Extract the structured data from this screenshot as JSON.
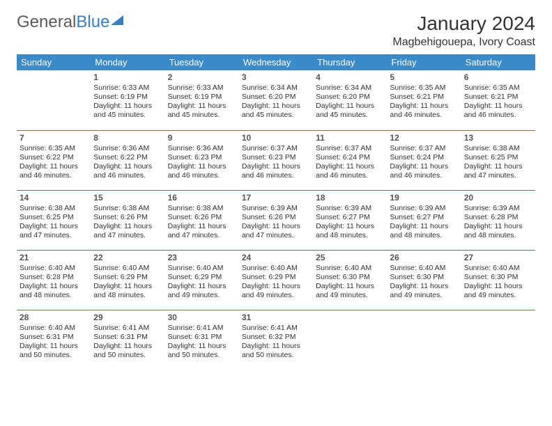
{
  "logo": {
    "part1": "General",
    "part2": "Blue"
  },
  "title": "January 2024",
  "location": "Magbehigouepa, Ivory Coast",
  "calendar": {
    "type": "table",
    "header_bg": "#3a89c9",
    "header_fg": "#ffffff",
    "border_color": "#3a7fc0",
    "background_color": "#ffffff",
    "text_color": "#333333",
    "font_size_cell": 10.5,
    "font_size_header": 13,
    "font_size_title": 28,
    "columns": [
      "Sunday",
      "Monday",
      "Tuesday",
      "Wednesday",
      "Thursday",
      "Friday",
      "Saturday"
    ],
    "weeks": [
      [
        null,
        {
          "n": "1",
          "sr": "Sunrise: 6:33 AM",
          "ss": "Sunset: 6:19 PM",
          "d1": "Daylight: 11 hours",
          "d2": "and 45 minutes."
        },
        {
          "n": "2",
          "sr": "Sunrise: 6:33 AM",
          "ss": "Sunset: 6:19 PM",
          "d1": "Daylight: 11 hours",
          "d2": "and 45 minutes."
        },
        {
          "n": "3",
          "sr": "Sunrise: 6:34 AM",
          "ss": "Sunset: 6:20 PM",
          "d1": "Daylight: 11 hours",
          "d2": "and 45 minutes."
        },
        {
          "n": "4",
          "sr": "Sunrise: 6:34 AM",
          "ss": "Sunset: 6:20 PM",
          "d1": "Daylight: 11 hours",
          "d2": "and 45 minutes."
        },
        {
          "n": "5",
          "sr": "Sunrise: 6:35 AM",
          "ss": "Sunset: 6:21 PM",
          "d1": "Daylight: 11 hours",
          "d2": "and 46 minutes."
        },
        {
          "n": "6",
          "sr": "Sunrise: 6:35 AM",
          "ss": "Sunset: 6:21 PM",
          "d1": "Daylight: 11 hours",
          "d2": "and 46 minutes."
        }
      ],
      [
        {
          "n": "7",
          "sr": "Sunrise: 6:35 AM",
          "ss": "Sunset: 6:22 PM",
          "d1": "Daylight: 11 hours",
          "d2": "and 46 minutes."
        },
        {
          "n": "8",
          "sr": "Sunrise: 6:36 AM",
          "ss": "Sunset: 6:22 PM",
          "d1": "Daylight: 11 hours",
          "d2": "and 46 minutes."
        },
        {
          "n": "9",
          "sr": "Sunrise: 6:36 AM",
          "ss": "Sunset: 6:23 PM",
          "d1": "Daylight: 11 hours",
          "d2": "and 46 minutes."
        },
        {
          "n": "10",
          "sr": "Sunrise: 6:37 AM",
          "ss": "Sunset: 6:23 PM",
          "d1": "Daylight: 11 hours",
          "d2": "and 46 minutes."
        },
        {
          "n": "11",
          "sr": "Sunrise: 6:37 AM",
          "ss": "Sunset: 6:24 PM",
          "d1": "Daylight: 11 hours",
          "d2": "and 46 minutes."
        },
        {
          "n": "12",
          "sr": "Sunrise: 6:37 AM",
          "ss": "Sunset: 6:24 PM",
          "d1": "Daylight: 11 hours",
          "d2": "and 46 minutes."
        },
        {
          "n": "13",
          "sr": "Sunrise: 6:38 AM",
          "ss": "Sunset: 6:25 PM",
          "d1": "Daylight: 11 hours",
          "d2": "and 47 minutes."
        }
      ],
      [
        {
          "n": "14",
          "sr": "Sunrise: 6:38 AM",
          "ss": "Sunset: 6:25 PM",
          "d1": "Daylight: 11 hours",
          "d2": "and 47 minutes."
        },
        {
          "n": "15",
          "sr": "Sunrise: 6:38 AM",
          "ss": "Sunset: 6:26 PM",
          "d1": "Daylight: 11 hours",
          "d2": "and 47 minutes."
        },
        {
          "n": "16",
          "sr": "Sunrise: 6:38 AM",
          "ss": "Sunset: 6:26 PM",
          "d1": "Daylight: 11 hours",
          "d2": "and 47 minutes."
        },
        {
          "n": "17",
          "sr": "Sunrise: 6:39 AM",
          "ss": "Sunset: 6:26 PM",
          "d1": "Daylight: 11 hours",
          "d2": "and 47 minutes."
        },
        {
          "n": "18",
          "sr": "Sunrise: 6:39 AM",
          "ss": "Sunset: 6:27 PM",
          "d1": "Daylight: 11 hours",
          "d2": "and 48 minutes."
        },
        {
          "n": "19",
          "sr": "Sunrise: 6:39 AM",
          "ss": "Sunset: 6:27 PM",
          "d1": "Daylight: 11 hours",
          "d2": "and 48 minutes."
        },
        {
          "n": "20",
          "sr": "Sunrise: 6:39 AM",
          "ss": "Sunset: 6:28 PM",
          "d1": "Daylight: 11 hours",
          "d2": "and 48 minutes."
        }
      ],
      [
        {
          "n": "21",
          "sr": "Sunrise: 6:40 AM",
          "ss": "Sunset: 6:28 PM",
          "d1": "Daylight: 11 hours",
          "d2": "and 48 minutes."
        },
        {
          "n": "22",
          "sr": "Sunrise: 6:40 AM",
          "ss": "Sunset: 6:29 PM",
          "d1": "Daylight: 11 hours",
          "d2": "and 48 minutes."
        },
        {
          "n": "23",
          "sr": "Sunrise: 6:40 AM",
          "ss": "Sunset: 6:29 PM",
          "d1": "Daylight: 11 hours",
          "d2": "and 49 minutes."
        },
        {
          "n": "24",
          "sr": "Sunrise: 6:40 AM",
          "ss": "Sunset: 6:29 PM",
          "d1": "Daylight: 11 hours",
          "d2": "and 49 minutes."
        },
        {
          "n": "25",
          "sr": "Sunrise: 6:40 AM",
          "ss": "Sunset: 6:30 PM",
          "d1": "Daylight: 11 hours",
          "d2": "and 49 minutes."
        },
        {
          "n": "26",
          "sr": "Sunrise: 6:40 AM",
          "ss": "Sunset: 6:30 PM",
          "d1": "Daylight: 11 hours",
          "d2": "and 49 minutes."
        },
        {
          "n": "27",
          "sr": "Sunrise: 6:40 AM",
          "ss": "Sunset: 6:30 PM",
          "d1": "Daylight: 11 hours",
          "d2": "and 49 minutes."
        }
      ],
      [
        {
          "n": "28",
          "sr": "Sunrise: 6:40 AM",
          "ss": "Sunset: 6:31 PM",
          "d1": "Daylight: 11 hours",
          "d2": "and 50 minutes."
        },
        {
          "n": "29",
          "sr": "Sunrise: 6:41 AM",
          "ss": "Sunset: 6:31 PM",
          "d1": "Daylight: 11 hours",
          "d2": "and 50 minutes."
        },
        {
          "n": "30",
          "sr": "Sunrise: 6:41 AM",
          "ss": "Sunset: 6:31 PM",
          "d1": "Daylight: 11 hours",
          "d2": "and 50 minutes."
        },
        {
          "n": "31",
          "sr": "Sunrise: 6:41 AM",
          "ss": "Sunset: 6:32 PM",
          "d1": "Daylight: 11 hours",
          "d2": "and 50 minutes."
        },
        null,
        null,
        null
      ]
    ]
  }
}
